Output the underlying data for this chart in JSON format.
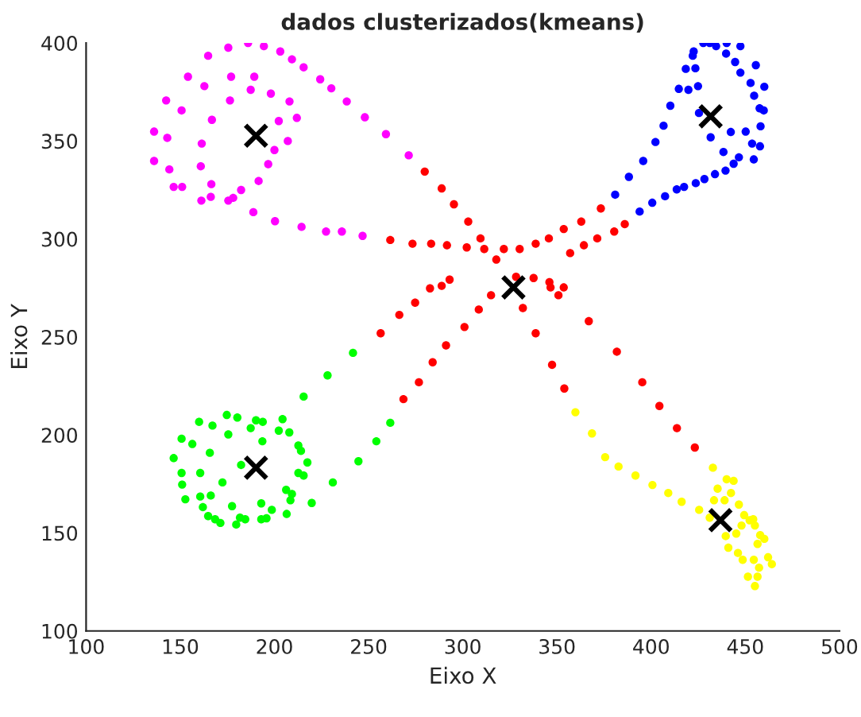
{
  "chart_data": {
    "type": "scatter",
    "title": "dados clusterizados(kmeans)",
    "xlabel": "Eixo X",
    "ylabel": "Eixo Y",
    "xlim": [
      100,
      500
    ],
    "xticks": [
      100,
      150,
      200,
      250,
      300,
      350,
      400,
      450,
      500
    ],
    "ylim": [
      100,
      400
    ],
    "yticks": [
      100,
      150,
      200,
      250,
      300,
      350,
      400
    ],
    "grid": false,
    "legend": false,
    "series": [
      {
        "color": "#ff00ff",
        "marker": "circle",
        "x": [
          186,
          194.4,
          175.5,
          203.1,
          164.8,
          209.3,
          215.5,
          154.1,
          177,
          189.3,
          224.3,
          162.8,
          187.4,
          198.1,
          230.2,
          142.5,
          176.4,
          208,
          238.4,
          150.7,
          166.8,
          202.3,
          211.9,
          248,
          136.1,
          143.1,
          161.4,
          207.1,
          259.2,
          136.1,
          144.2,
          160.9,
          200,
          196.7,
          271.3,
          146.5,
          151,
          166.5,
          191.6,
          161.2,
          166.2,
          175.5,
          178.1,
          182.3,
          188.8,
          200.3,
          214.4,
          227.4,
          235.8,
          246.8
        ],
        "values": [
          400,
          398.4,
          397.6,
          395.7,
          393.5,
          391.7,
          387.6,
          382.8,
          382.8,
          382.8,
          381.5,
          378,
          376.1,
          374.2,
          376.9,
          370.7,
          370.7,
          370.2,
          370.2,
          365.6,
          360.8,
          360.2,
          361.8,
          362.1,
          354.8,
          351.6,
          348.7,
          350,
          353.5,
          339.8,
          335.5,
          337.1,
          345.4,
          338.2,
          342.7,
          326.6,
          326.6,
          328,
          329.6,
          319.6,
          321.5,
          319.6,
          321,
          325,
          313.7,
          309.1,
          306.2,
          303.8,
          303.8,
          301.6
        ]
      },
      {
        "color": "#0000ff",
        "marker": "circle",
        "x": [
          431.1,
          427.7,
          440.1,
          434.5,
          447.4,
          422.6,
          422.1,
          439.8,
          444.6,
          418.4,
          423.5,
          455.6,
          447.4,
          452.8,
          460.1,
          414.7,
          419.8,
          424.9,
          410.2,
          454.7,
          457.6,
          459.8,
          425.4,
          406.6,
          433.9,
          442.3,
          450.2,
          458.1,
          431.6,
          402.3,
          453.6,
          457.8,
          438.4,
          446.6,
          454.5,
          395.8,
          443.8,
          439.5,
          433.9,
          428.3,
          423.7,
          417.5,
          413.6,
          388.2,
          407.4,
          400.6,
          393.9,
          380.9
        ],
        "values": [
          400,
          400,
          400,
          398.4,
          398.4,
          395.7,
          393.5,
          394.6,
          390.3,
          386.8,
          387.1,
          388.7,
          384.9,
          379.6,
          377.7,
          376.6,
          376.1,
          378,
          368,
          373.1,
          366.7,
          365.6,
          364.3,
          357.8,
          null,
          354.6,
          354.8,
          357.5,
          351.9,
          349.5,
          348.7,
          347.3,
          344.4,
          341.7,
          340.6,
          339.8,
          338.4,
          334.9,
          333.1,
          330.6,
          328.5,
          326.6,
          325.3,
          331.7,
          321.8,
          318.5,
          314,
          322.6
        ]
      },
      {
        "color": "#00ff00",
        "marker": "circle",
        "x": [
          241.7,
          228.2,
          215.5,
          174.7,
          180.3,
          160,
          167.1,
          190.2,
          193.8,
          204.3,
          187.4,
          202.3,
          207.9,
          150.7,
          156.4,
          175.5,
          193.6,
          212.7,
          214.1,
          146.5,
          165.7,
          182.3,
          217.5,
          150.7,
          160.6,
          212.7,
          215.5,
          151,
          172.4,
          231,
          206.2,
          209.3,
          160.6,
          166.2,
          152.7,
          208.5,
          219.8,
          162,
          193,
          177.5,
          206.5,
          164.8,
          168.5,
          198.6,
          181.7,
          184.5,
          193,
          171.3,
          179.7,
          195.8,
          244.6,
          254.1,
          261.5
        ],
        "values": [
          241.9,
          230.4,
          219.6,
          210.2,
          208.9,
          206.7,
          204.8,
          207.5,
          206.7,
          208.1,
          203.5,
          202.2,
          201.3,
          198.1,
          195.4,
          200.3,
          196.8,
          194.6,
          191.9,
          188.2,
          190.9,
          184.7,
          186,
          180.6,
          180.6,
          180.6,
          179.3,
          174.7,
          175.8,
          175.8,
          172,
          169.9,
          168.6,
          169.1,
          167.2,
          166.7,
          165.3,
          163.2,
          165.1,
          163.7,
          159.7,
          158.6,
          157,
          161.8,
          157.8,
          157,
          157,
          155.1,
          154.3,
          157.5,
          186.6,
          196.8,
          206.2
        ]
      },
      {
        "color": "#ffff00",
        "marker": "circle",
        "x": [
          359.8,
          368.6,
          375.6,
          382.7,
          391.7,
          400.7,
          409.1,
          416.2,
          425.5,
          432.8,
          440.1,
          443.8,
          435.3,
          442.4,
          439,
          446.6,
          433.4,
          449.4,
          452.3,
          454.2,
          455.1,
          439.6,
          445.2,
          457.9,
          460.1,
          456.5,
          441,
          446.1,
          448.6,
          454.5,
          462.1,
          464.1,
          457.3,
          451.4,
          456.5,
          455.1,
          431.1,
          448
        ],
        "values": [
          211.6,
          200.8,
          188.7,
          183.9,
          179.3,
          174.5,
          170.4,
          165.9,
          161.8,
          183.3,
          177.4,
          176.6,
          172.6,
          170.4,
          166.7,
          164.5,
          166.7,
          159.1,
          156.5,
          157,
          153.8,
          148.4,
          149.7,
          148.9,
          147,
          144.4,
          142.5,
          139.8,
          136.3,
          136.3,
          137.6,
          134.1,
          132.3,
          127.7,
          127.7,
          122.9,
          157.8,
          153.8
        ]
      },
      {
        "color": "#ff0000",
        "marker": "circle",
        "x": [
          279.8,
          288.8,
          295.3,
          373.3,
          302.9,
          362.9,
          353.6,
          386,
          380.4,
          261.5,
          273.3,
          283.2,
          291.6,
          302.1,
          309.4,
          311.4,
          321.8,
          330.2,
          338.7,
          345.7,
          371.4,
          364.3,
          357,
          317.8,
          293,
          288.8,
          282.6,
          328.3,
          337.6,
          346,
          353.6,
          346.6,
          350.8,
          315,
          274.7,
          308.5,
          331.9,
          266.3,
          366.9,
          300.9,
          256.4,
          338.7,
          291.1,
          381.8,
          284,
          347.4,
          276.7,
          395.3,
          353.9,
          268.5,
          404.4,
          413.7,
          423.2
        ],
        "values": [
          334.4,
          325.8,
          317.7,
          315.6,
          308.9,
          308.9,
          305.1,
          307.6,
          303.8,
          299.5,
          297.6,
          297.6,
          296.8,
          295.7,
          300.3,
          294.9,
          294.9,
          294.9,
          297.6,
          300.3,
          300.3,
          296.8,
          292.8,
          289.5,
          279.3,
          276.1,
          274.8,
          280.7,
          280.1,
          278,
          275.3,
          275.3,
          271.3,
          271.3,
          267.5,
          264,
          264.8,
          261.3,
          258.1,
          255.1,
          251.9,
          251.9,
          245.7,
          242.5,
          237.1,
          235.8,
          226.9,
          226.9,
          223.7,
          218.3,
          214.8,
          203.5,
          193.6
        ]
      },
      {
        "color": "#000000",
        "marker": "cross",
        "x": [
          190.2,
          431.6,
          190.2,
          436.8,
          326.9
        ],
        "values": [
          352.7,
          362.6,
          183.3,
          156.5,
          275.3
        ]
      }
    ]
  }
}
